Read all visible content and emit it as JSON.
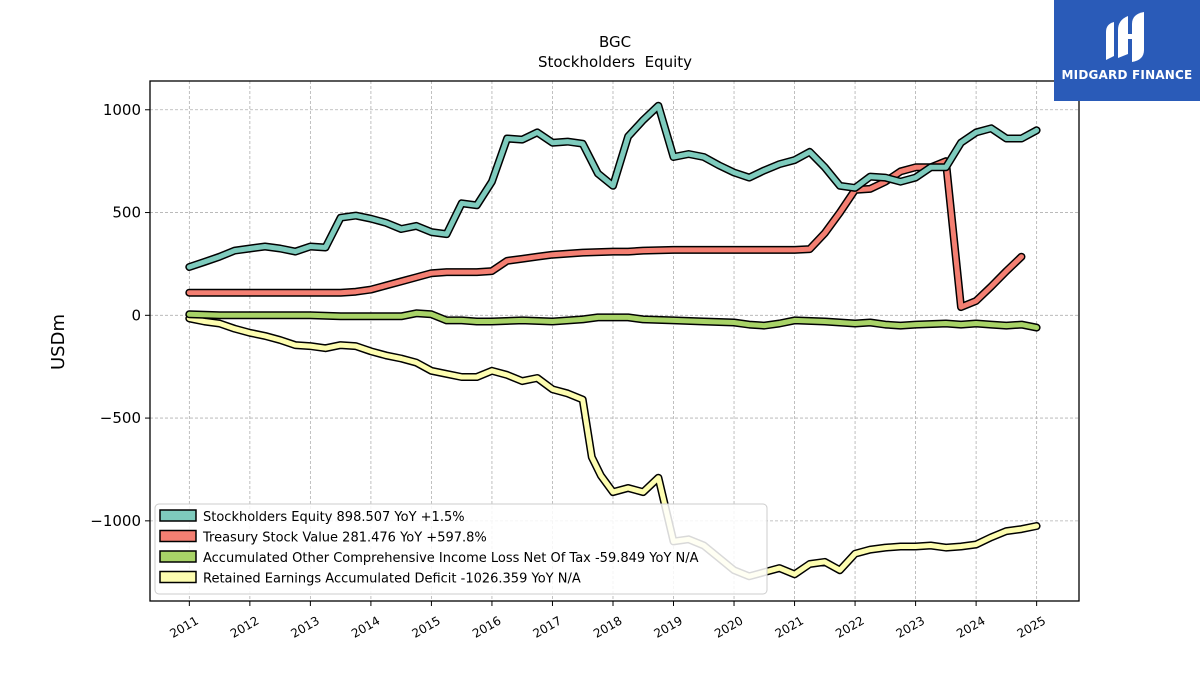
{
  "chart_data": {
    "type": "line",
    "title": "BGC",
    "subtitle": "Stockholders  Equity",
    "ylabel": "USDm",
    "xlabel": "",
    "ylim": [
      -1390,
      1140
    ],
    "xlim": [
      2010.35,
      2025.7
    ],
    "yticks": [
      1000,
      500,
      0,
      -500,
      -1000
    ],
    "ytick_labels": [
      "1000",
      "500",
      "0",
      "−500",
      "−1000"
    ],
    "xticks": [
      2011,
      2012,
      2013,
      2014,
      2015,
      2016,
      2017,
      2018,
      2019,
      2020,
      2021,
      2022,
      2023,
      2024,
      2025
    ],
    "xtick_labels": [
      "2011",
      "2012",
      "2013",
      "2014",
      "2015",
      "2016",
      "2017",
      "2018",
      "2019",
      "2020",
      "2021",
      "2022",
      "2023",
      "2024",
      "2025"
    ],
    "grid": true,
    "legend_position": "lower-left",
    "series": [
      {
        "name": "Stockholders Equity",
        "legend": "Stockholders Equity  898.507 YoY +1.5%",
        "color": "#7ecbbd",
        "x": [
          2011.0,
          2011.25,
          2011.5,
          2011.75,
          2012.0,
          2012.25,
          2012.5,
          2012.75,
          2013.0,
          2013.25,
          2013.5,
          2013.75,
          2014.0,
          2014.25,
          2014.5,
          2014.75,
          2015.0,
          2015.25,
          2015.5,
          2015.75,
          2016.0,
          2016.25,
          2016.5,
          2016.75,
          2017.0,
          2017.25,
          2017.5,
          2017.75,
          2018.0,
          2018.25,
          2018.5,
          2018.75,
          2019.0,
          2019.25,
          2019.5,
          2019.75,
          2020.0,
          2020.25,
          2020.5,
          2020.75,
          2021.0,
          2021.25,
          2021.5,
          2021.75,
          2022.0,
          2022.25,
          2022.5,
          2022.75,
          2023.0,
          2023.25,
          2023.5,
          2023.75,
          2024.0,
          2024.25,
          2024.5,
          2024.75,
          2025.0
        ],
        "values": [
          235,
          260,
          285,
          315,
          325,
          335,
          325,
          310,
          335,
          330,
          475,
          485,
          470,
          450,
          420,
          435,
          405,
          395,
          545,
          535,
          650,
          860,
          855,
          890,
          840,
          845,
          835,
          690,
          630,
          870,
          950,
          1020,
          770,
          785,
          770,
          730,
          695,
          670,
          705,
          735,
          755,
          795,
          720,
          630,
          620,
          675,
          670,
          650,
          670,
          720,
          720,
          840,
          890,
          910,
          860,
          860,
          900
        ]
      },
      {
        "name": "Treasury Stock Value",
        "legend": "Treasury Stock Value  281.476 YoY +597.8%",
        "color": "#f47f72",
        "x": [
          2011.0,
          2011.5,
          2012.0,
          2012.5,
          2013.0,
          2013.5,
          2013.75,
          2014.0,
          2014.25,
          2014.5,
          2014.75,
          2015.0,
          2015.25,
          2015.5,
          2015.75,
          2016.0,
          2016.25,
          2016.5,
          2016.75,
          2017.0,
          2017.5,
          2018.0,
          2018.25,
          2018.5,
          2019.0,
          2019.5,
          2020.0,
          2020.5,
          2021.0,
          2021.25,
          2021.5,
          2021.75,
          2022.0,
          2022.25,
          2022.5,
          2022.75,
          2023.0,
          2023.25,
          2023.5,
          2023.75,
          2024.0,
          2024.25,
          2024.5,
          2024.75
        ],
        "values": [
          110,
          110,
          110,
          110,
          110,
          110,
          115,
          125,
          145,
          165,
          185,
          205,
          210,
          210,
          210,
          215,
          265,
          275,
          285,
          295,
          305,
          310,
          310,
          315,
          318,
          318,
          318,
          318,
          318,
          322,
          400,
          500,
          610,
          615,
          650,
          700,
          720,
          720,
          750,
          40,
          70,
          140,
          215,
          285
        ]
      },
      {
        "name": "Accumulated Other Comprehensive Income Loss Net Of Tax",
        "legend": "Accumulated Other Comprehensive Income Loss Net Of Tax  -59.849 YoY N/A",
        "color": "#a8d367",
        "x": [
          2011.0,
          2011.5,
          2012.0,
          2012.5,
          2013.0,
          2013.5,
          2014.0,
          2014.5,
          2014.75,
          2015.0,
          2015.25,
          2015.5,
          2015.75,
          2016.0,
          2016.5,
          2017.0,
          2017.5,
          2017.75,
          2018.0,
          2018.25,
          2018.5,
          2019.0,
          2019.5,
          2020.0,
          2020.25,
          2020.5,
          2020.75,
          2021.0,
          2021.5,
          2022.0,
          2022.25,
          2022.5,
          2022.75,
          2023.0,
          2023.5,
          2023.75,
          2024.0,
          2024.25,
          2024.5,
          2024.75,
          2025.0
        ],
        "values": [
          5,
          0,
          0,
          0,
          0,
          -5,
          -5,
          -5,
          10,
          5,
          -25,
          -25,
          -30,
          -30,
          -25,
          -30,
          -20,
          -10,
          -10,
          -10,
          -20,
          -25,
          -30,
          -35,
          -45,
          -50,
          -40,
          -25,
          -30,
          -40,
          -35,
          -45,
          -50,
          -45,
          -40,
          -45,
          -40,
          -45,
          -50,
          -45,
          -60
        ]
      },
      {
        "name": "Retained Earnings Accumulated Deficit",
        "legend": "Retained Earnings Accumulated Deficit  -1026.359 YoY N/A",
        "color": "#fdfdb0",
        "x": [
          2011.0,
          2011.25,
          2011.5,
          2011.75,
          2012.0,
          2012.25,
          2012.5,
          2012.75,
          2013.0,
          2013.25,
          2013.5,
          2013.75,
          2014.0,
          2014.25,
          2014.5,
          2014.75,
          2015.0,
          2015.25,
          2015.5,
          2015.75,
          2016.0,
          2016.25,
          2016.5,
          2016.75,
          2017.0,
          2017.25,
          2017.5,
          2017.65,
          2017.8,
          2018.0,
          2018.25,
          2018.5,
          2018.75,
          2019.0,
          2019.25,
          2019.5,
          2019.75,
          2020.0,
          2020.25,
          2020.5,
          2020.75,
          2021.0,
          2021.25,
          2021.5,
          2021.75,
          2022.0,
          2022.25,
          2022.5,
          2022.75,
          2023.0,
          2023.25,
          2023.5,
          2023.75,
          2024.0,
          2024.25,
          2024.5,
          2024.75,
          2025.0
        ],
        "values": [
          -15,
          -30,
          -40,
          -65,
          -85,
          -100,
          -120,
          -145,
          -150,
          -160,
          -145,
          -150,
          -175,
          -195,
          -210,
          -230,
          -270,
          -285,
          -300,
          -300,
          -270,
          -290,
          -320,
          -305,
          -360,
          -380,
          -410,
          -690,
          -780,
          -860,
          -840,
          -860,
          -790,
          -1100,
          -1090,
          -1120,
          -1180,
          -1240,
          -1270,
          -1250,
          -1230,
          -1260,
          -1210,
          -1200,
          -1240,
          -1160,
          -1140,
          -1130,
          -1125,
          -1125,
          -1120,
          -1130,
          -1125,
          -1115,
          -1080,
          -1050,
          -1040,
          -1025
        ]
      }
    ]
  },
  "logo": {
    "text": "MIDGARD FINANCE",
    "background": "#2a5bb8"
  }
}
